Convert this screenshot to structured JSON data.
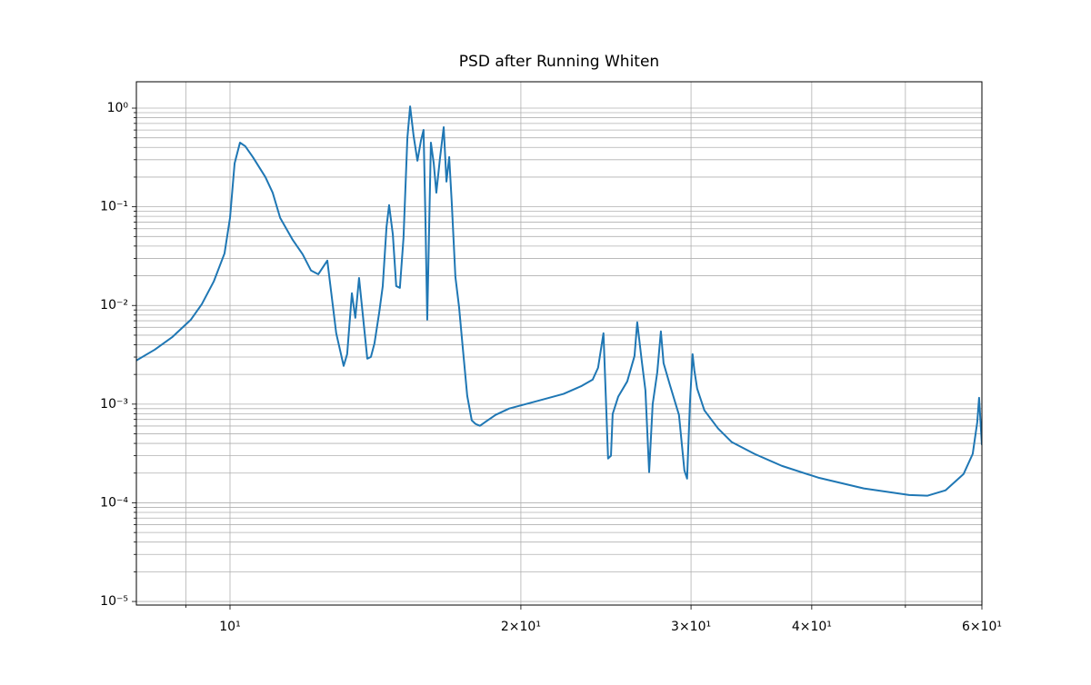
{
  "chart_data": {
    "type": "line",
    "title": "PSD after Running Whiten",
    "color": "#1f77b4",
    "xscale": "log",
    "yscale": "log",
    "grid": true,
    "xlim": [
      8,
      60
    ],
    "ylim": [
      9.2e-06,
      1.85
    ],
    "xticks": [
      {
        "value": 10,
        "label": "10¹"
      },
      {
        "value": 20,
        "label": "2×10¹"
      },
      {
        "value": 30,
        "label": "3×10¹"
      },
      {
        "value": 40,
        "label": "4×10¹"
      },
      {
        "value": 60,
        "label": "6×10¹"
      }
    ],
    "xminorticks": [
      9,
      50
    ],
    "yticks": [
      {
        "value": 1e-05,
        "label": "10⁻⁵"
      },
      {
        "value": 0.0001,
        "label": "10⁻⁴"
      },
      {
        "value": 0.001,
        "label": "10⁻³"
      },
      {
        "value": 0.01,
        "label": "10⁻²"
      },
      {
        "value": 0.1,
        "label": "10⁻¹"
      },
      {
        "value": 1,
        "label": "10⁰"
      }
    ],
    "yminorticks": [
      2e-05,
      3e-05,
      4e-05,
      5e-05,
      6e-05,
      7e-05,
      8e-05,
      9e-05,
      0.0002,
      0.0003,
      0.0004,
      0.0005,
      0.0006,
      0.0007,
      0.0008,
      0.0009,
      0.002,
      0.003,
      0.004,
      0.005,
      0.006,
      0.007,
      0.008,
      0.009,
      0.02,
      0.03,
      0.04,
      0.05,
      0.06,
      0.07,
      0.08,
      0.09,
      0.2,
      0.3,
      0.4,
      0.5,
      0.6,
      0.7,
      0.8,
      0.9
    ],
    "x": [
      8.0,
      8.36,
      8.72,
      9.11,
      9.35,
      9.62,
      9.87,
      10.0,
      10.11,
      10.24,
      10.37,
      10.56,
      10.88,
      11.07,
      11.27,
      11.61,
      11.89,
      12.13,
      12.34,
      12.61,
      12.88,
      13.11,
      13.22,
      13.37,
      13.48,
      13.6,
      13.87,
      13.99,
      14.11,
      14.27,
      14.39,
      14.52,
      14.61,
      14.74,
      14.86,
      14.99,
      15.12,
      15.26,
      15.36,
      15.49,
      15.63,
      15.76,
      15.86,
      15.93,
      16.0,
      16.14,
      16.25,
      16.35,
      16.49,
      16.64,
      16.75,
      16.86,
      16.96,
      17.11,
      17.26,
      17.41,
      17.6,
      17.79,
      17.95,
      18.14,
      18.42,
      18.83,
      19.45,
      20.75,
      22.14,
      23.12,
      23.73,
      24.04,
      24.35,
      24.62,
      24.79,
      24.89,
      25.22,
      25.77,
      26.22,
      26.39,
      26.68,
      26.91,
      27.15,
      27.38,
      27.68,
      27.92,
      28.1,
      28.53,
      29.15,
      29.53,
      29.72,
      29.92,
      30.11,
      30.24,
      30.44,
      30.97,
      32.0,
      33.06,
      34.9,
      37.24,
      40.62,
      45.28,
      50.46,
      52.68,
      55.03,
      57.44,
      58.7,
      59.34,
      59.6,
      60.0
    ],
    "values": [
      0.00277,
      0.00357,
      0.00481,
      0.00718,
      0.0103,
      0.0175,
      0.0337,
      0.0771,
      0.275,
      0.447,
      0.411,
      0.319,
      0.2,
      0.139,
      0.0771,
      0.0463,
      0.033,
      0.0226,
      0.0207,
      0.0285,
      0.00523,
      0.00244,
      0.00321,
      0.0133,
      0.0075,
      0.019,
      0.00289,
      0.00301,
      0.00414,
      0.00851,
      0.0157,
      0.0624,
      0.104,
      0.0526,
      0.0157,
      0.0151,
      0.0483,
      0.497,
      1.04,
      0.519,
      0.293,
      0.466,
      0.601,
      0.0771,
      0.00718,
      0.447,
      0.275,
      0.139,
      0.305,
      0.641,
      0.18,
      0.319,
      0.113,
      0.0195,
      0.00966,
      0.00381,
      0.00121,
      0.000685,
      0.00063,
      0.000603,
      0.00067,
      0.000778,
      0.000902,
      0.00107,
      0.00127,
      0.00153,
      0.00177,
      0.00234,
      0.00523,
      0.000281,
      0.0003,
      0.000794,
      0.00119,
      0.0017,
      0.00308,
      0.00675,
      0.00271,
      0.00138,
      0.000205,
      0.001,
      0.0021,
      0.00546,
      0.0026,
      0.00156,
      0.000778,
      0.000213,
      0.000176,
      0.001,
      0.00321,
      0.00219,
      0.00144,
      0.000865,
      0.000566,
      0.000412,
      0.000313,
      0.000237,
      0.00018,
      0.00014,
      0.00012,
      0.000118,
      0.000134,
      0.000196,
      0.000313,
      0.000656,
      0.00116,
      0.000386
    ]
  }
}
